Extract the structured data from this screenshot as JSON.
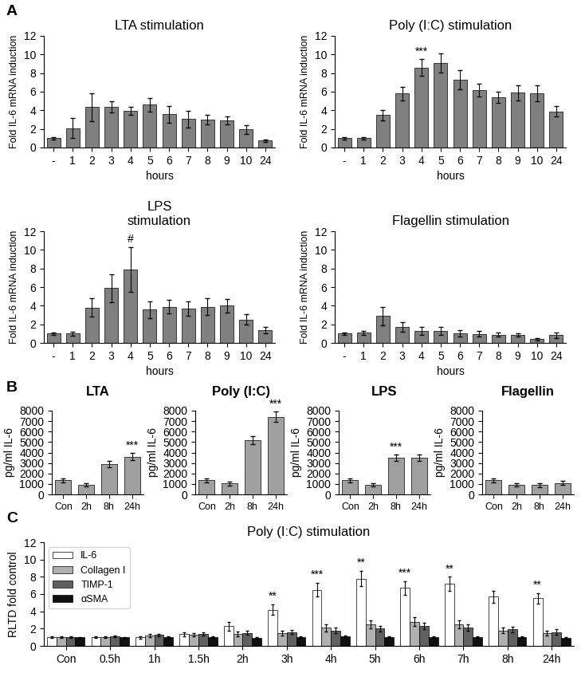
{
  "chart_data": [
    {
      "type": "bar",
      "title": "LTA stimulation",
      "categories": [
        "-",
        "1",
        "2",
        "3",
        "4",
        "5",
        "6",
        "7",
        "8",
        "9",
        "10",
        "24"
      ],
      "values": [
        1.0,
        2.1,
        4.35,
        4.35,
        3.95,
        4.6,
        3.6,
        3.05,
        3.0,
        2.9,
        1.95,
        0.75
      ],
      "errors": [
        0.15,
        1.1,
        1.5,
        0.6,
        0.45,
        0.7,
        0.9,
        0.9,
        0.55,
        0.45,
        0.45,
        0.15
      ],
      "color": "#808080",
      "x_label": "hours",
      "y_label": "Fold IL-6 mRNA induction",
      "ylim": [
        0,
        12
      ],
      "yticks": [
        0,
        2,
        4,
        6,
        8,
        10,
        12
      ],
      "annotations": [
        {
          "text": "A"
        }
      ]
    },
    {
      "type": "bar",
      "title": "Poly (I:C) stimulation",
      "categories": [
        "-",
        "1",
        "2",
        "3",
        "4",
        "5",
        "6",
        "7",
        "8",
        "9",
        "10",
        "24"
      ],
      "values": [
        1.0,
        1.0,
        3.5,
        5.8,
        8.6,
        9.1,
        7.3,
        6.2,
        5.4,
        5.9,
        5.85,
        3.9
      ],
      "errors": [
        0.1,
        0.15,
        0.55,
        0.7,
        0.9,
        1.0,
        1.0,
        0.7,
        0.6,
        0.8,
        0.85,
        0.55
      ],
      "color": "#808080",
      "x_label": "hours",
      "y_label": "Fold IL-6 mRNA induction",
      "ylim": [
        0,
        12
      ],
      "yticks": [
        0,
        2,
        4,
        6,
        8,
        10,
        12
      ],
      "annotations": [
        {
          "category": "4",
          "text": "***"
        }
      ]
    },
    {
      "type": "bar",
      "title": "LPS\nstimulation",
      "categories": [
        "-",
        "1",
        "2",
        "3",
        "4",
        "5",
        "6",
        "7",
        "8",
        "9",
        "10",
        "24"
      ],
      "values": [
        1.0,
        1.0,
        3.8,
        5.9,
        7.9,
        3.6,
        3.9,
        3.7,
        3.9,
        4.0,
        2.5,
        1.35
      ],
      "errors": [
        0.15,
        0.2,
        1.0,
        1.5,
        2.4,
        0.9,
        0.7,
        0.8,
        0.9,
        0.7,
        0.55,
        0.35
      ],
      "color": "#808080",
      "x_label": "hours",
      "y_label": "Fold IL-6 mRNA induction",
      "ylim": [
        0,
        12
      ],
      "yticks": [
        0,
        2,
        4,
        6,
        8,
        10,
        12
      ],
      "annotations": [
        {
          "category": "4",
          "text": "#"
        }
      ]
    },
    {
      "type": "bar",
      "title": "Flagellin stimulation",
      "categories": [
        "-",
        "1",
        "2",
        "3",
        "4",
        "5",
        "6",
        "7",
        "8",
        "9",
        "10",
        "24"
      ],
      "values": [
        1.0,
        1.1,
        2.9,
        1.7,
        1.3,
        1.3,
        1.0,
        0.95,
        0.9,
        0.85,
        0.4,
        0.85
      ],
      "errors": [
        0.1,
        0.2,
        1.0,
        0.5,
        0.4,
        0.45,
        0.35,
        0.3,
        0.25,
        0.2,
        0.15,
        0.3
      ],
      "color": "#808080",
      "x_label": "hours",
      "y_label": "Fold IL-6 mRNA induction",
      "ylim": [
        0,
        12
      ],
      "yticks": [
        0,
        2,
        4,
        6,
        8,
        10,
        12
      ]
    },
    {
      "type": "bar",
      "title": "LTA",
      "categories": [
        "Con",
        "2h",
        "8h",
        "24h"
      ],
      "values": [
        1350,
        900,
        2900,
        3600
      ],
      "errors": [
        200,
        150,
        300,
        350
      ],
      "color": "#a0a0a0",
      "y_label": "pg/ml IL-6",
      "ylim": [
        0,
        8000
      ],
      "yticks": [
        0,
        1000,
        2000,
        3000,
        4000,
        5000,
        6000,
        7000,
        8000
      ],
      "annotations": [
        {
          "category": "24h",
          "text": "***"
        },
        {
          "text": "B"
        }
      ]
    },
    {
      "type": "bar",
      "title": "Poly (I:C)",
      "categories": [
        "Con",
        "2h",
        "8h",
        "24h"
      ],
      "values": [
        1350,
        1050,
        5200,
        7400
      ],
      "errors": [
        200,
        200,
        400,
        500
      ],
      "color": "#a0a0a0",
      "y_label": "pg/ml IL-6",
      "ylim": [
        0,
        8000
      ],
      "yticks": [
        0,
        1000,
        2000,
        3000,
        4000,
        5000,
        6000,
        7000,
        8000
      ],
      "annotations": [
        {
          "category": "24h",
          "text": "***"
        }
      ]
    },
    {
      "type": "bar",
      "title": "LPS",
      "categories": [
        "Con",
        "2h",
        "8h",
        "24h"
      ],
      "values": [
        1350,
        900,
        3500,
        3500
      ],
      "errors": [
        200,
        150,
        300,
        300
      ],
      "color": "#a0a0a0",
      "y_label": "pg/ml IL-6",
      "ylim": [
        0,
        8000
      ],
      "yticks": [
        0,
        1000,
        2000,
        3000,
        4000,
        5000,
        6000,
        7000,
        8000
      ],
      "annotations": [
        {
          "category": "8h",
          "text": "***"
        }
      ]
    },
    {
      "type": "bar",
      "title": "Flagellin",
      "categories": [
        "Con",
        "2h",
        "8h",
        "24h"
      ],
      "values": [
        1350,
        900,
        900,
        1100
      ],
      "errors": [
        200,
        150,
        180,
        200
      ],
      "color": "#a0a0a0",
      "y_label": "pg/ml IL-6",
      "ylim": [
        0,
        8000
      ],
      "yticks": [
        0,
        1000,
        2000,
        3000,
        4000,
        5000,
        6000,
        7000,
        8000
      ]
    },
    {
      "type": "bar",
      "title": "Poly (I:C) stimulation",
      "categories": [
        "Con",
        "0.5h",
        "1h",
        "1.5h",
        "2h",
        "3h",
        "4h",
        "5h",
        "6h",
        "7h",
        "8h",
        "24h"
      ],
      "y_label": "RLTD fold control",
      "ylim": [
        0,
        12
      ],
      "yticks": [
        0,
        2,
        4,
        6,
        8,
        10,
        12
      ],
      "legend": "upper left",
      "series": [
        {
          "name": "IL-6",
          "color": "#ffffff",
          "values": [
            1.0,
            1.0,
            1.0,
            1.35,
            2.3,
            4.2,
            6.5,
            7.8,
            6.7,
            7.2,
            5.7,
            5.5
          ],
          "errors": [
            0.1,
            0.1,
            0.15,
            0.2,
            0.5,
            0.6,
            0.8,
            0.9,
            0.8,
            0.8,
            0.7,
            0.6
          ]
        },
        {
          "name": "Collagen I",
          "color": "#b0b0b0",
          "values": [
            1.0,
            1.05,
            1.2,
            1.3,
            1.4,
            1.5,
            2.1,
            2.5,
            2.8,
            2.5,
            1.8,
            1.5
          ],
          "errors": [
            0.1,
            0.1,
            0.15,
            0.2,
            0.25,
            0.3,
            0.4,
            0.5,
            0.5,
            0.45,
            0.35,
            0.3
          ]
        },
        {
          "name": "TIMP-1",
          "color": "#606060",
          "values": [
            1.0,
            1.1,
            1.25,
            1.4,
            1.5,
            1.6,
            1.8,
            2.0,
            2.3,
            2.1,
            1.9,
            1.6
          ],
          "errors": [
            0.1,
            0.12,
            0.15,
            0.2,
            0.25,
            0.25,
            0.3,
            0.35,
            0.4,
            0.35,
            0.3,
            0.3
          ]
        },
        {
          "name": "αSMA",
          "color": "#101010",
          "values": [
            1.0,
            1.0,
            1.05,
            1.0,
            0.95,
            1.0,
            1.1,
            1.05,
            1.0,
            1.0,
            1.0,
            0.9
          ],
          "errors": [
            0.05,
            0.05,
            0.08,
            0.08,
            0.08,
            0.08,
            0.1,
            0.08,
            0.08,
            0.08,
            0.08,
            0.1
          ]
        }
      ],
      "annotations": [
        {
          "category": "3h",
          "series": "IL-6",
          "text": "**"
        },
        {
          "category": "4h",
          "series": "IL-6",
          "text": "***"
        },
        {
          "category": "5h",
          "series": "IL-6",
          "text": "**"
        },
        {
          "category": "6h",
          "series": "IL-6",
          "text": "***"
        },
        {
          "category": "7h",
          "series": "IL-6",
          "text": "**"
        },
        {
          "category": "24h",
          "series": "IL-6",
          "text": "**"
        },
        {
          "text": "C"
        }
      ]
    }
  ]
}
